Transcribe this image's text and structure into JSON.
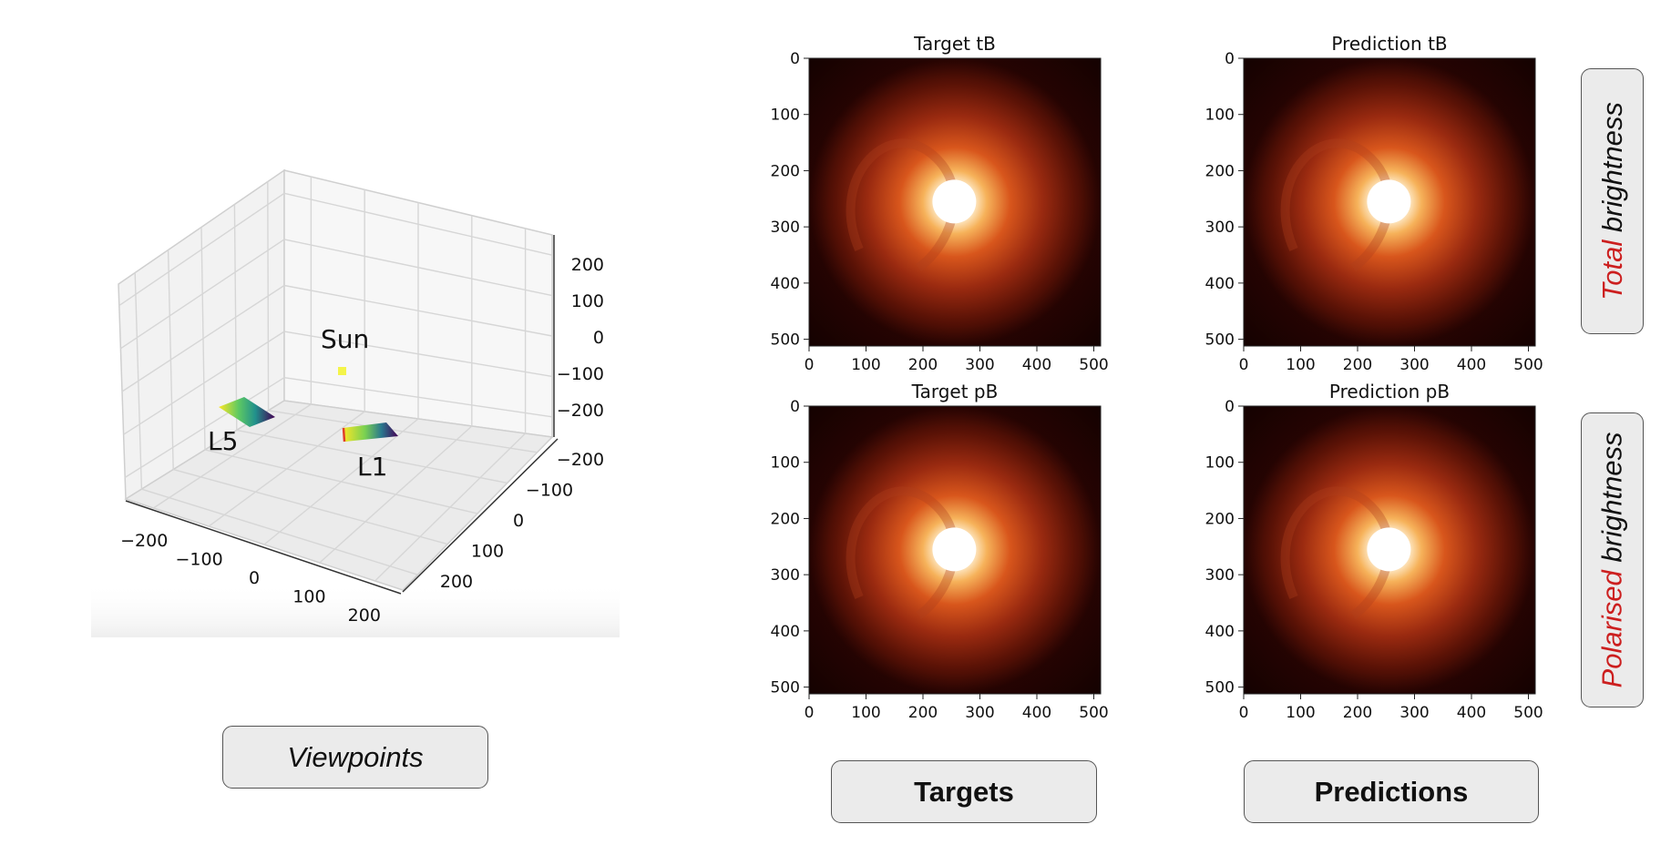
{
  "colors": {
    "accent": "#cc1f1f",
    "box_fill": "#ebebeb",
    "box_border": "#555555"
  },
  "viewpoints": {
    "label": "Viewpoints",
    "x_ticks": [
      -200,
      -100,
      0,
      100,
      200
    ],
    "y_ticks": [
      -200,
      -100,
      0,
      100,
      200
    ],
    "z_ticks": [
      200,
      100,
      0,
      -100,
      -200
    ],
    "annotations": [
      "Sun",
      "L5",
      "L1"
    ]
  },
  "chart_data": [
    {
      "type": "scatter3d",
      "title": "",
      "colormap": "viridis",
      "points": [
        {
          "name": "Sun",
          "x": 0,
          "y": 0,
          "z": 0
        }
      ],
      "x_ticks": [
        -200,
        -100,
        0,
        100,
        200
      ],
      "y_ticks": [
        -200,
        -100,
        0,
        100,
        200
      ],
      "z_ticks": [
        -200,
        -100,
        0,
        100,
        200
      ],
      "annotations": [
        "Sun",
        "L5",
        "L1"
      ]
    },
    {
      "type": "heatmap",
      "title": "Target tB",
      "colormap": "gist_heat",
      "xlim": [
        0,
        512
      ],
      "ylim": [
        512,
        0
      ],
      "x_ticks": [
        0,
        100,
        200,
        300,
        400,
        500
      ],
      "y_ticks": [
        0,
        100,
        200,
        300,
        400,
        500
      ]
    },
    {
      "type": "heatmap",
      "title": "Prediction tB",
      "colormap": "gist_heat",
      "xlim": [
        0,
        512
      ],
      "ylim": [
        512,
        0
      ],
      "x_ticks": [
        0,
        100,
        200,
        300,
        400,
        500
      ],
      "y_ticks": [
        0,
        100,
        200,
        300,
        400,
        500
      ]
    },
    {
      "type": "heatmap",
      "title": "Target pB",
      "colormap": "gist_heat",
      "xlim": [
        0,
        512
      ],
      "ylim": [
        512,
        0
      ],
      "x_ticks": [
        0,
        100,
        200,
        300,
        400,
        500
      ],
      "y_ticks": [
        0,
        100,
        200,
        300,
        400,
        500
      ]
    },
    {
      "type": "heatmap",
      "title": "Prediction pB",
      "colormap": "gist_heat",
      "xlim": [
        0,
        512
      ],
      "ylim": [
        512,
        0
      ],
      "x_ticks": [
        0,
        100,
        200,
        300,
        400,
        500
      ],
      "y_ticks": [
        0,
        100,
        200,
        300,
        400,
        500
      ]
    }
  ],
  "panels": [
    {
      "title": "Target tB"
    },
    {
      "title": "Prediction tB"
    },
    {
      "title": "Target pB"
    },
    {
      "title": "Prediction pB"
    }
  ],
  "columns": {
    "targets": "Targets",
    "predictions": "Predictions"
  },
  "rows": {
    "total": {
      "accent_word": "Total",
      "rest": "brightness"
    },
    "polarised": {
      "accent_word": "Polarised",
      "rest": "brightness"
    }
  }
}
